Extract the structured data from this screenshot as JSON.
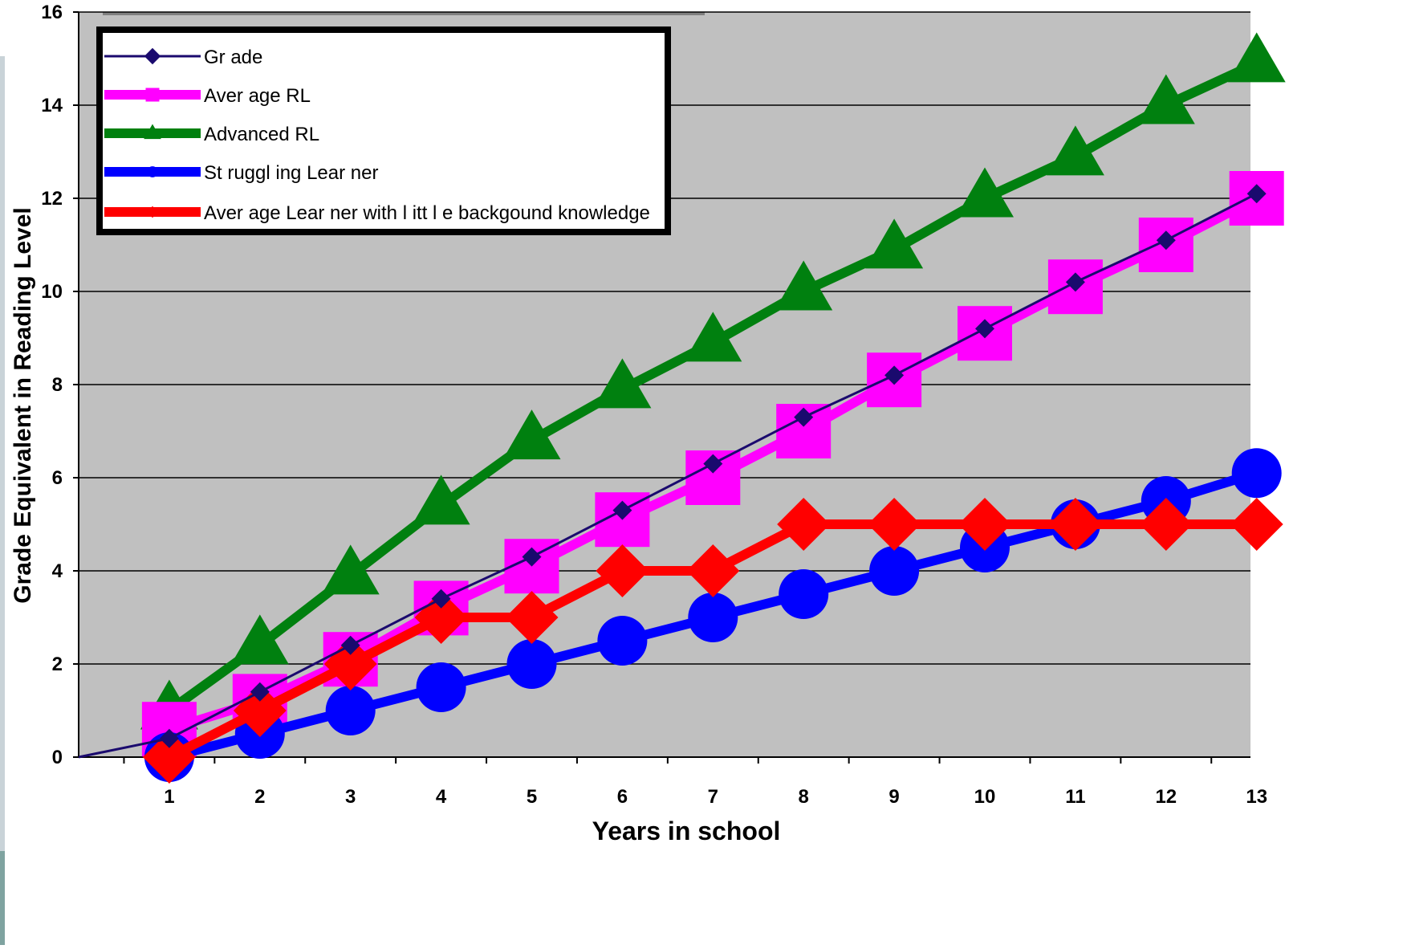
{
  "chart_data": {
    "type": "line",
    "xlabel": "Years in school",
    "ylabel": "Grade Equivalent in Reading Level",
    "categories": [
      "1",
      "2",
      "3",
      "4",
      "5",
      "6",
      "7",
      "8",
      "9",
      "10",
      "11",
      "12",
      "13"
    ],
    "ylim": [
      0,
      16
    ],
    "yticks": [
      "0",
      "2",
      "4",
      "6",
      "8",
      "10",
      "12",
      "14",
      "16"
    ],
    "grid": true,
    "legend_position": "top-left",
    "series": [
      {
        "name": "Grade",
        "color": "#1a0a6e",
        "marker": "diamond-small",
        "x": [
          0,
          1,
          2,
          3,
          4,
          5,
          6,
          7,
          8,
          9,
          10,
          11,
          12,
          13
        ],
        "values": [
          0,
          0.4,
          1.4,
          2.4,
          3.4,
          4.3,
          5.3,
          6.3,
          7.3,
          8.2,
          9.2,
          10.2,
          11.1,
          12.1
        ]
      },
      {
        "name": "Average RL",
        "color": "#ff00ff",
        "marker": "square",
        "x": [
          1,
          2,
          3,
          4,
          5,
          6,
          7,
          8,
          9,
          10,
          11,
          12,
          13
        ],
        "values": [
          0.6,
          1.2,
          2.1,
          3.2,
          4.1,
          5.1,
          6.0,
          7.0,
          8.1,
          9.1,
          10.1,
          11.0,
          12.0
        ]
      },
      {
        "name": "Advanced RL",
        "color": "#00800f",
        "marker": "triangle",
        "x": [
          1,
          2,
          3,
          4,
          5,
          6,
          7,
          8,
          9,
          10,
          11,
          12,
          13
        ],
        "values": [
          1.0,
          2.4,
          3.9,
          5.4,
          6.8,
          7.9,
          8.9,
          10.0,
          10.9,
          12.0,
          12.9,
          14.0,
          14.9
        ]
      },
      {
        "name": "Struggling Learner",
        "color": "#0000ff",
        "marker": "circle",
        "x": [
          1,
          2,
          3,
          4,
          5,
          6,
          7,
          8,
          9,
          10,
          11,
          12,
          13
        ],
        "values": [
          0.0,
          0.5,
          1.0,
          1.5,
          2.0,
          2.5,
          3.0,
          3.5,
          4.0,
          4.5,
          5.0,
          5.5,
          6.1
        ]
      },
      {
        "name": "Average Learner with little backgound knowledge",
        "color": "#ff0000",
        "marker": "diamond",
        "x": [
          1,
          2,
          3,
          4,
          5,
          6,
          7,
          8,
          9,
          10,
          11,
          12,
          13
        ],
        "values": [
          0,
          1,
          2,
          3,
          3,
          4,
          4,
          5,
          5,
          5,
          5,
          5,
          5
        ]
      }
    ]
  },
  "legend": {
    "labels": [
      "Gr ade",
      "Aver age RL",
      "Advanced RL",
      "St ruggl ing Lear ner",
      "Aver age Lear ner  with l itt l e backgound knowledge"
    ]
  }
}
